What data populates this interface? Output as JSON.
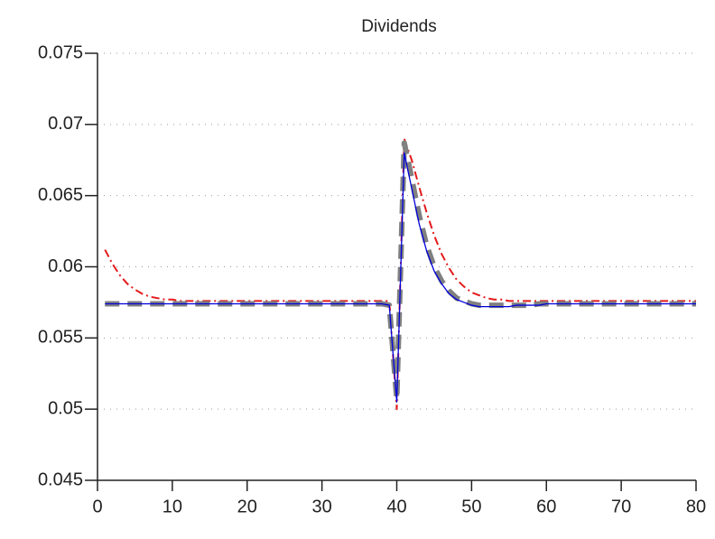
{
  "chart_data": {
    "type": "line",
    "title": "Dividends",
    "x": [
      1,
      2,
      3,
      4,
      5,
      6,
      7,
      8,
      9,
      10,
      11,
      12,
      13,
      14,
      15,
      16,
      17,
      18,
      19,
      20,
      21,
      22,
      23,
      24,
      25,
      26,
      27,
      28,
      29,
      30,
      31,
      32,
      33,
      34,
      35,
      36,
      37,
      38,
      39,
      40,
      41,
      42,
      43,
      44,
      45,
      46,
      47,
      48,
      49,
      50,
      51,
      52,
      53,
      54,
      55,
      56,
      57,
      58,
      59,
      60,
      61,
      62,
      63,
      64,
      65,
      66,
      67,
      68,
      69,
      70,
      71,
      72,
      73,
      74,
      75,
      76,
      77,
      78,
      79,
      80
    ],
    "series": [
      {
        "color": "#e41a1c",
        "linestyle": "dashdot",
        "values": [
          0.0612,
          0.0602,
          0.0594,
          0.0588,
          0.0584,
          0.0581,
          0.0579,
          0.0578,
          0.0577,
          0.0577,
          0.0576,
          0.0576,
          0.0576,
          0.0576,
          0.0576,
          0.0576,
          0.0576,
          0.0576,
          0.0576,
          0.0576,
          0.0576,
          0.0576,
          0.0576,
          0.0576,
          0.0576,
          0.0576,
          0.0576,
          0.0576,
          0.0576,
          0.0576,
          0.0576,
          0.0576,
          0.0576,
          0.0576,
          0.0576,
          0.0576,
          0.0576,
          0.0576,
          0.0576,
          0.05,
          0.069,
          0.0675,
          0.0656,
          0.0638,
          0.0622,
          0.0609,
          0.0599,
          0.0591,
          0.0586,
          0.0582,
          0.058,
          0.0578,
          0.0577,
          0.0577,
          0.0576,
          0.0576,
          0.0576,
          0.0576,
          0.0576,
          0.0576,
          0.0576,
          0.0576,
          0.0576,
          0.0576,
          0.0576,
          0.0576,
          0.0576,
          0.0576,
          0.0576,
          0.0576,
          0.0576,
          0.0576,
          0.0576,
          0.0576,
          0.0576,
          0.0576,
          0.0576,
          0.0576,
          0.0576,
          0.0576
        ]
      },
      {
        "color": "#808080",
        "linestyle": "bold-dashed",
        "values": [
          0.0574,
          0.0574,
          0.0574,
          0.0574,
          0.0574,
          0.0574,
          0.0574,
          0.0574,
          0.0574,
          0.0574,
          0.0574,
          0.0574,
          0.0574,
          0.0574,
          0.0574,
          0.0574,
          0.0574,
          0.0574,
          0.0574,
          0.0574,
          0.0574,
          0.0574,
          0.0574,
          0.0574,
          0.0574,
          0.0574,
          0.0574,
          0.0574,
          0.0574,
          0.0574,
          0.0574,
          0.0574,
          0.0574,
          0.0574,
          0.0574,
          0.0574,
          0.0574,
          0.0574,
          0.0573,
          0.0507,
          0.0687,
          0.0662,
          0.0636,
          0.0615,
          0.06,
          0.059,
          0.0583,
          0.0578,
          0.0576,
          0.0574,
          0.0573,
          0.0573,
          0.0573,
          0.0573,
          0.0573,
          0.0573,
          0.0573,
          0.0573,
          0.0574,
          0.0574,
          0.0574,
          0.0574,
          0.0574,
          0.0574,
          0.0574,
          0.0574,
          0.0574,
          0.0574,
          0.0574,
          0.0574,
          0.0574,
          0.0574,
          0.0574,
          0.0574,
          0.0574,
          0.0574,
          0.0574,
          0.0574,
          0.0574,
          0.0574
        ]
      },
      {
        "color": "#0000dd",
        "linestyle": "solid",
        "values": [
          0.0574,
          0.0574,
          0.0574,
          0.0574,
          0.0574,
          0.0574,
          0.0574,
          0.0574,
          0.0574,
          0.0574,
          0.0574,
          0.0574,
          0.0574,
          0.0574,
          0.0574,
          0.0574,
          0.0574,
          0.0574,
          0.0574,
          0.0574,
          0.0574,
          0.0574,
          0.0574,
          0.0574,
          0.0574,
          0.0574,
          0.0574,
          0.0574,
          0.0574,
          0.0574,
          0.0574,
          0.0574,
          0.0574,
          0.0574,
          0.0574,
          0.0574,
          0.0574,
          0.0574,
          0.0573,
          0.0505,
          0.068,
          0.0655,
          0.063,
          0.0611,
          0.0597,
          0.0588,
          0.0581,
          0.0577,
          0.0575,
          0.0573,
          0.0572,
          0.0572,
          0.0572,
          0.0572,
          0.0572,
          0.0573,
          0.0573,
          0.0573,
          0.0573,
          0.0574,
          0.0574,
          0.0574,
          0.0574,
          0.0574,
          0.0574,
          0.0574,
          0.0574,
          0.0574,
          0.0574,
          0.0574,
          0.0574,
          0.0574,
          0.0574,
          0.0574,
          0.0574,
          0.0574,
          0.0574,
          0.0574,
          0.0574,
          0.0574
        ]
      }
    ],
    "xlim": [
      0,
      80
    ],
    "xticks": [
      0,
      10,
      20,
      30,
      40,
      50,
      60,
      70,
      80
    ],
    "ylim": [
      0.045,
      0.075
    ],
    "yticks": [
      0.045,
      0.05,
      0.055,
      0.06,
      0.065,
      0.07,
      0.075
    ],
    "grid": true
  }
}
